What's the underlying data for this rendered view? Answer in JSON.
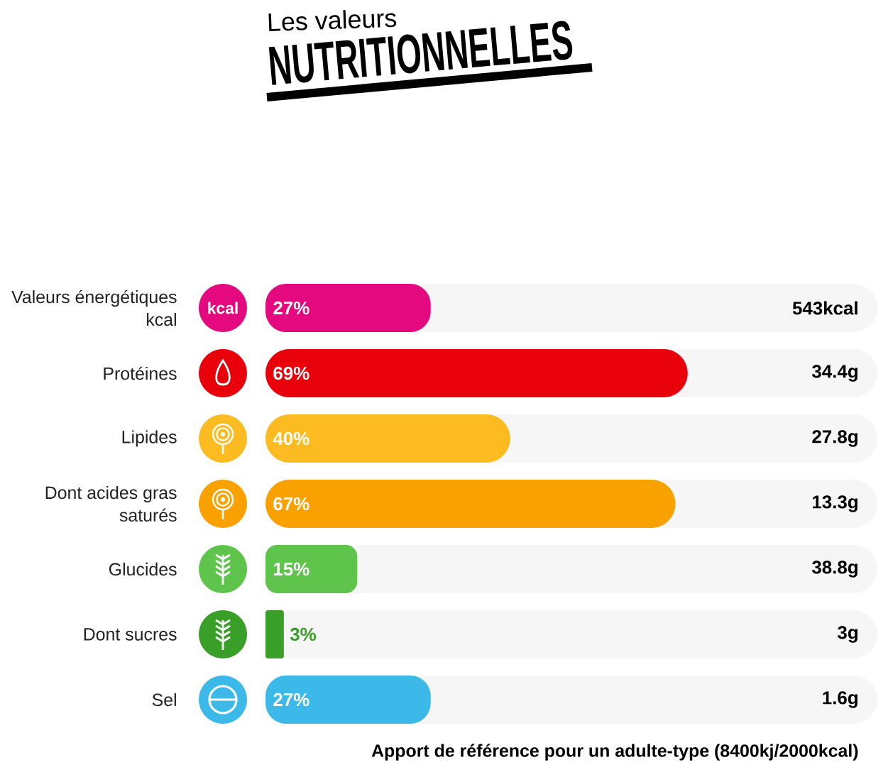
{
  "chart_data": {
    "type": "bar",
    "orientation": "horizontal",
    "title": "Les valeurs",
    "subtitle": "NUTRITIONNELLES",
    "categories": [
      "Valeurs énergétiques kcal",
      "Protéines",
      "Lipides",
      "Dont acides gras saturés",
      "Glucides",
      "Dont sucres",
      "Sel"
    ],
    "values": [
      27,
      69,
      40,
      67,
      15,
      3,
      27
    ],
    "value_labels": [
      "27%",
      "69%",
      "40%",
      "67%",
      "15%",
      "3%",
      "27%"
    ],
    "colors": [
      "#e4097e",
      "#e8000a",
      "#fcbb21",
      "#f9a100",
      "#5ec44c",
      "#3a9f29",
      "#3cb9e9"
    ],
    "xlim": [
      0,
      100
    ],
    "tick_labels": "y",
    "annotations": [
      "543kcal",
      "34.4g",
      "27.8g",
      "13.3g",
      "38.8g",
      "3g",
      "1.6g",
      "Apport de référence pour un adulte-type (8400kj/2000kcal)",
      "kcal"
    ]
  }
}
